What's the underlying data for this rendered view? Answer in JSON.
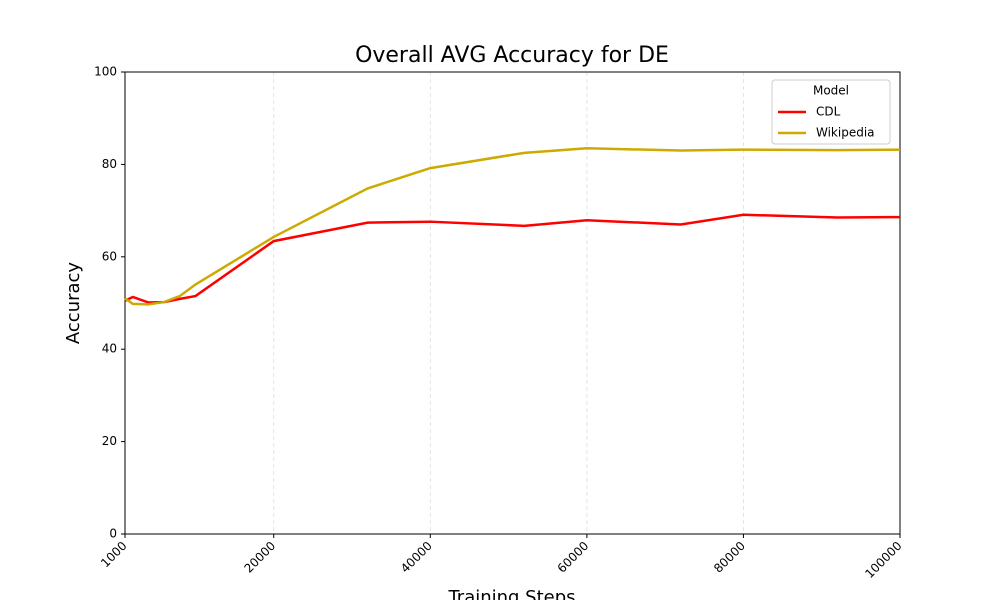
{
  "chart_data": {
    "type": "line",
    "title": "Overall AVG Accuracy for DE",
    "x_label": "Training Steps",
    "y_label": "Accuracy",
    "x": [
      1000,
      2000,
      4000,
      6000,
      8000,
      10000,
      20000,
      32000,
      40000,
      52000,
      60000,
      72000,
      80000,
      92000,
      100000
    ],
    "series": [
      {
        "name": "CDL",
        "color": "#ff0000",
        "values": [
          50.5,
          51.3,
          50.1,
          50.2,
          50.9,
          51.5,
          63.4,
          67.4,
          67.6,
          66.7,
          67.9,
          67.0,
          69.1,
          68.5,
          68.6
        ]
      },
      {
        "name": "Wikipedia",
        "color": "#ccaa00",
        "values": [
          51.0,
          49.8,
          49.7,
          50.2,
          51.5,
          54.0,
          64.3,
          74.8,
          79.2,
          82.5,
          83.5,
          83.0,
          83.2,
          83.1,
          83.2
        ]
      }
    ],
    "legend_title": "Model",
    "legend": "upper right",
    "xlim": [
      1000,
      100000
    ],
    "xticks": [
      1000,
      20000,
      40000,
      60000,
      80000,
      100000
    ],
    "ylim": [
      0,
      100
    ],
    "yticks": [
      0,
      20,
      40,
      60,
      80,
      100
    ],
    "grid": "x"
  }
}
